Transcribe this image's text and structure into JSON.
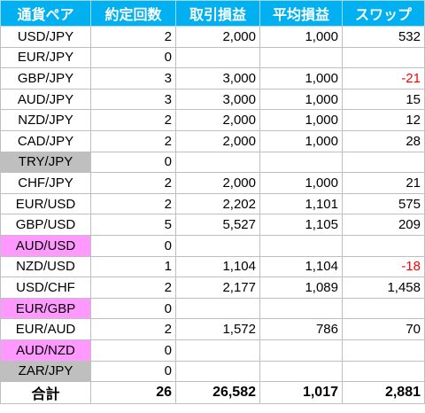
{
  "headers": [
    "通貨ペア",
    "約定回数",
    "取引損益",
    "平均損益",
    "スワップ"
  ],
  "rows": [
    {
      "pair": "USD/JPY",
      "count": "2",
      "pnl": "2,000",
      "avg": "1,000",
      "swap": "532",
      "bg": "",
      "swap_color": ""
    },
    {
      "pair": "EUR/JPY",
      "count": "0",
      "pnl": "",
      "avg": "",
      "swap": "",
      "bg": "",
      "swap_color": ""
    },
    {
      "pair": "GBP/JPY",
      "count": "3",
      "pnl": "3,000",
      "avg": "1,000",
      "swap": "-21",
      "bg": "",
      "swap_color": "#ff0000"
    },
    {
      "pair": "AUD/JPY",
      "count": "3",
      "pnl": "3,000",
      "avg": "1,000",
      "swap": "15",
      "bg": "",
      "swap_color": ""
    },
    {
      "pair": "NZD/JPY",
      "count": "2",
      "pnl": "2,000",
      "avg": "1,000",
      "swap": "12",
      "bg": "",
      "swap_color": ""
    },
    {
      "pair": "CAD/JPY",
      "count": "2",
      "pnl": "2,000",
      "avg": "1,000",
      "swap": "28",
      "bg": "",
      "swap_color": ""
    },
    {
      "pair": "TRY/JPY",
      "count": "0",
      "pnl": "",
      "avg": "",
      "swap": "",
      "bg": "#bfbfbf",
      "swap_color": ""
    },
    {
      "pair": "CHF/JPY",
      "count": "2",
      "pnl": "2,000",
      "avg": "1,000",
      "swap": "21",
      "bg": "",
      "swap_color": ""
    },
    {
      "pair": "EUR/USD",
      "count": "2",
      "pnl": "2,202",
      "avg": "1,101",
      "swap": "575",
      "bg": "",
      "swap_color": ""
    },
    {
      "pair": "GBP/USD",
      "count": "5",
      "pnl": "5,527",
      "avg": "1,105",
      "swap": "209",
      "bg": "",
      "swap_color": ""
    },
    {
      "pair": "AUD/USD",
      "count": "0",
      "pnl": "",
      "avg": "",
      "swap": "",
      "bg": "#ff99ff",
      "swap_color": ""
    },
    {
      "pair": "NZD/USD",
      "count": "1",
      "pnl": "1,104",
      "avg": "1,104",
      "swap": "-18",
      "bg": "",
      "swap_color": "#ff0000"
    },
    {
      "pair": "USD/CHF",
      "count": "2",
      "pnl": "2,177",
      "avg": "1,089",
      "swap": "1,458",
      "bg": "",
      "swap_color": ""
    },
    {
      "pair": "EUR/GBP",
      "count": "0",
      "pnl": "",
      "avg": "",
      "swap": "",
      "bg": "#ff99ff",
      "swap_color": ""
    },
    {
      "pair": "EUR/AUD",
      "count": "2",
      "pnl": "1,572",
      "avg": "786",
      "swap": "70",
      "bg": "",
      "swap_color": ""
    },
    {
      "pair": "AUD/NZD",
      "count": "0",
      "pnl": "",
      "avg": "",
      "swap": "",
      "bg": "#ff99ff",
      "swap_color": ""
    },
    {
      "pair": "ZAR/JPY",
      "count": "0",
      "pnl": "",
      "avg": "",
      "swap": "",
      "bg": "#bfbfbf",
      "swap_color": ""
    }
  ],
  "total": {
    "label": "合計",
    "count": "26",
    "pnl": "26,582",
    "avg": "1,017",
    "swap": "2,881"
  }
}
